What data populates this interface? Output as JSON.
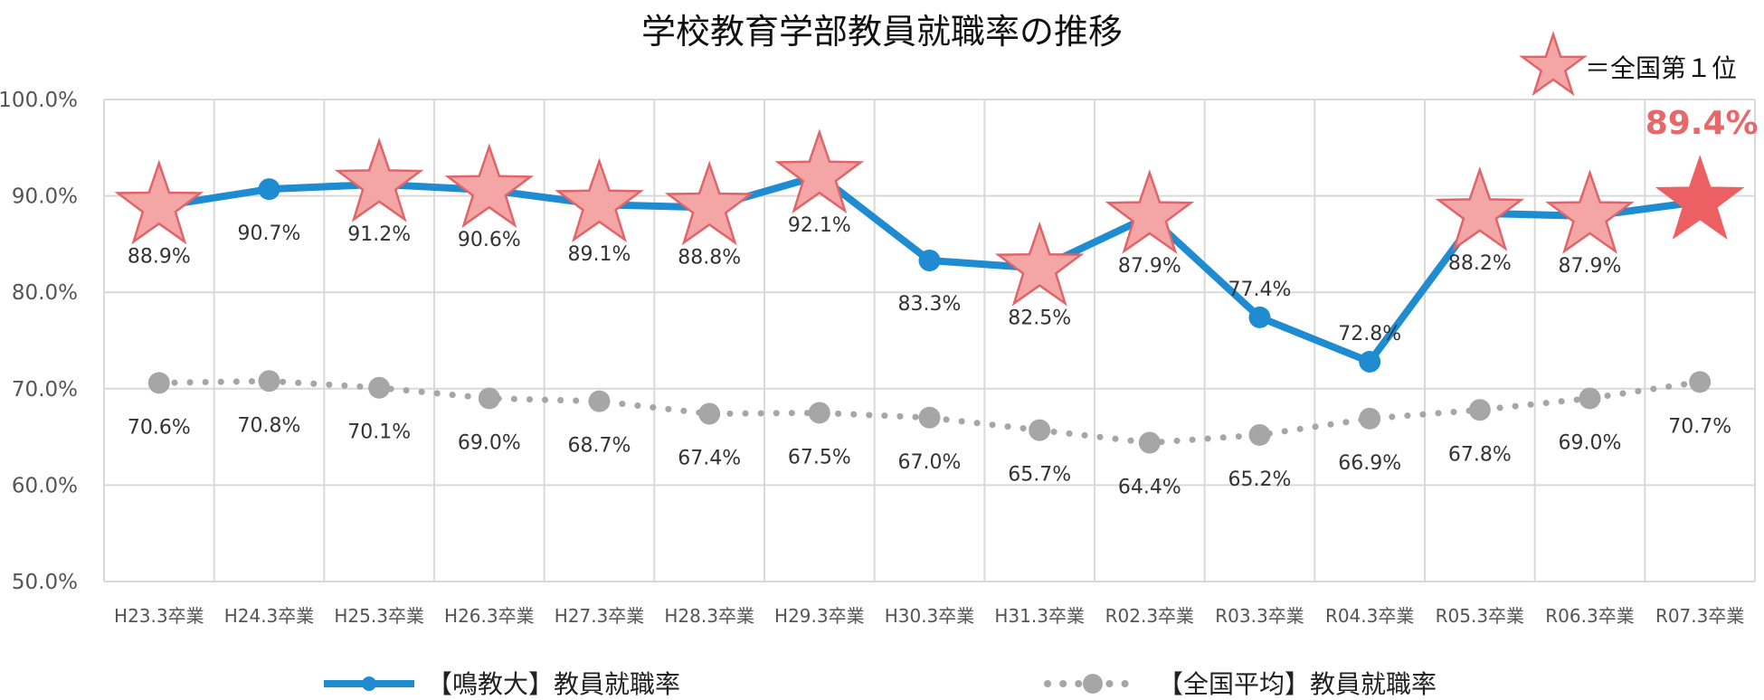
{
  "chart_data": {
    "type": "line",
    "title": "学校教育学部教員就職率の推移",
    "categories": [
      "H23.3卒業",
      "H24.3卒業",
      "H25.3卒業",
      "H26.3卒業",
      "H27.3卒業",
      "H28.3卒業",
      "H29.3卒業",
      "H30.3卒業",
      "H31.3卒業",
      "R02.3卒業",
      "R03.3卒業",
      "R04.3卒業",
      "R05.3卒業",
      "R06.3卒業",
      "R07.3卒業"
    ],
    "ylim": [
      50,
      100
    ],
    "yticks": [
      "50.0%",
      "60.0%",
      "70.0%",
      "80.0%",
      "90.0%",
      "100.0%"
    ],
    "grid": true,
    "legend_position": "bottom",
    "series": [
      {
        "name": "【鳴教大】教員就職率",
        "color": "#1f8bd0",
        "style": "solid",
        "values": [
          88.9,
          90.7,
          91.2,
          90.6,
          89.1,
          88.8,
          92.1,
          83.3,
          82.5,
          87.9,
          77.4,
          72.8,
          88.2,
          87.9,
          89.4
        ],
        "labels": [
          "88.9%",
          "90.7%",
          "91.2%",
          "90.6%",
          "89.1%",
          "88.8%",
          "92.1%",
          "83.3%",
          "82.5%",
          "87.9%",
          "77.4%",
          "72.8%",
          "88.2%",
          "87.9%",
          "89.4%"
        ],
        "national_first": [
          true,
          false,
          true,
          true,
          true,
          true,
          true,
          false,
          true,
          true,
          false,
          false,
          true,
          true,
          true
        ]
      },
      {
        "name": "【全国平均】教員就職率",
        "color": "#a6a6a6",
        "style": "dotted",
        "values": [
          70.6,
          70.8,
          70.1,
          69.0,
          68.7,
          67.4,
          67.5,
          67.0,
          65.7,
          64.4,
          65.2,
          66.9,
          67.8,
          69.0,
          70.7
        ],
        "labels": [
          "70.6%",
          "70.8%",
          "70.1%",
          "69.0%",
          "68.7%",
          "67.4%",
          "67.5%",
          "67.0%",
          "65.7%",
          "64.4%",
          "65.2%",
          "66.9%",
          "67.8%",
          "69.0%",
          "70.7%"
        ]
      }
    ],
    "annotations": {
      "star_legend": "＝全国第１位",
      "highlight_value": "89.4%"
    },
    "colors": {
      "star_fill": "#f4a6a6",
      "star_stroke": "#e06468",
      "highlight_star": "#ec5f62",
      "grid": "#d9d9d9"
    }
  }
}
